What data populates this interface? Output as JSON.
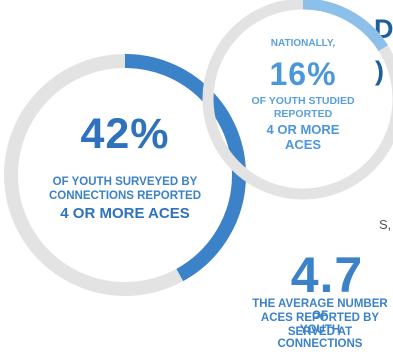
{
  "fragments": {
    "top_letter": "D",
    "paren": ")",
    "side_text": "S,"
  },
  "big_stat": {
    "value": "42%",
    "line1": "OF YOUTH SURVEYED BY",
    "line2": "CONNECTIONS REPORTED",
    "line3": "4 OR MORE ACES",
    "ring_fraction": 0.42,
    "ring_color": "#3b82c8",
    "track_color": "#e3e3e3"
  },
  "small_stat": {
    "lead": "NATIONALLY,",
    "value": "16%",
    "line1": "OF YOUTH STUDIED",
    "line2": "REPORTED",
    "line3": "4 OR MORE",
    "line4": "ACES",
    "ring_fraction": 0.16,
    "ring_color": "#8cbfea",
    "track_color": "#e3e3e3"
  },
  "average_stat": {
    "value": "4.7",
    "line1": "THE AVERAGE NUMBER OF",
    "line2": "ACES REPORTED BY YOUTH",
    "line3": "SERVED AT CONNECTIONS"
  }
}
